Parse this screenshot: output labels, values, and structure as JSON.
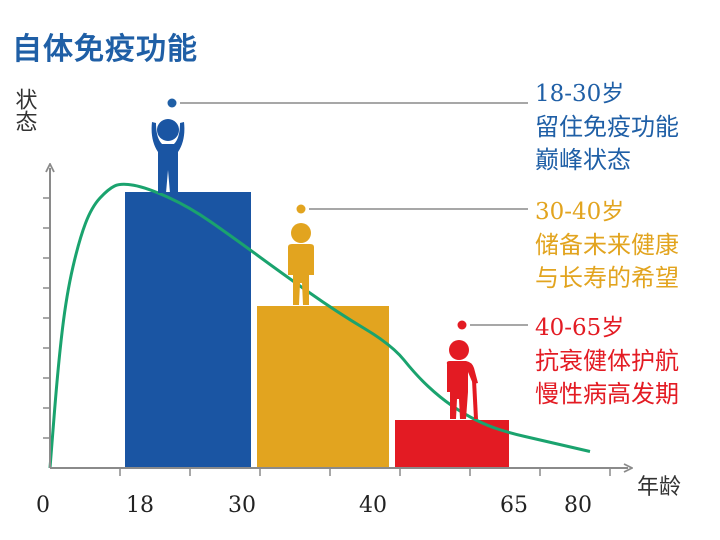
{
  "title": "自体免疫功能",
  "chart_data": {
    "type": "bar",
    "title": "自体免疫功能",
    "xlabel": "年龄",
    "ylabel": "状态",
    "xlim": [
      0,
      80
    ],
    "ylim": [
      0,
      10
    ],
    "x_ticks": [
      "0",
      "18",
      "30",
      "40",
      "65",
      "80"
    ],
    "bars": [
      {
        "x_start": 18,
        "x_end": 30,
        "value": 9.2,
        "color": "#1a55a3"
      },
      {
        "x_start": 30,
        "x_end": 40,
        "value": 5.4,
        "color": "#e2a41f"
      },
      {
        "x_start": 40,
        "x_end": 65,
        "value": 1.6,
        "color": "#e31b23"
      }
    ],
    "curve": {
      "color": "#1aa36e",
      "points": [
        [
          0,
          0
        ],
        [
          2,
          3.5
        ],
        [
          4,
          5.8
        ],
        [
          7,
          7.6
        ],
        [
          10,
          8.7
        ],
        [
          14,
          9.3
        ],
        [
          17,
          9.5
        ],
        [
          20,
          9.35
        ],
        [
          24,
          8.7
        ],
        [
          28,
          7.7
        ],
        [
          32,
          6.5
        ],
        [
          36,
          5.2
        ],
        [
          40,
          4.1
        ],
        [
          45,
          3.1
        ],
        [
          50,
          2.35
        ],
        [
          55,
          1.8
        ],
        [
          60,
          1.4
        ],
        [
          65,
          1.15
        ],
        [
          70,
          0.95
        ],
        [
          75,
          0.75
        ],
        [
          80,
          0.55
        ]
      ]
    }
  },
  "annotations": [
    {
      "age": "18-30岁",
      "lines": [
        "留住免疫功能",
        "巅峰状态"
      ],
      "color": "#1f5fa6",
      "icon": "person-arms-raised-icon"
    },
    {
      "age": "30-40岁",
      "lines": [
        "储备未来健康",
        "与长寿的希望"
      ],
      "color": "#e2a41f",
      "icon": "person-standing-icon"
    },
    {
      "age": "40-65岁",
      "lines": [
        "抗衰健体护航",
        "慢性病高发期"
      ],
      "color": "#e31b23",
      "icon": "elderly-person-cane-icon"
    }
  ]
}
